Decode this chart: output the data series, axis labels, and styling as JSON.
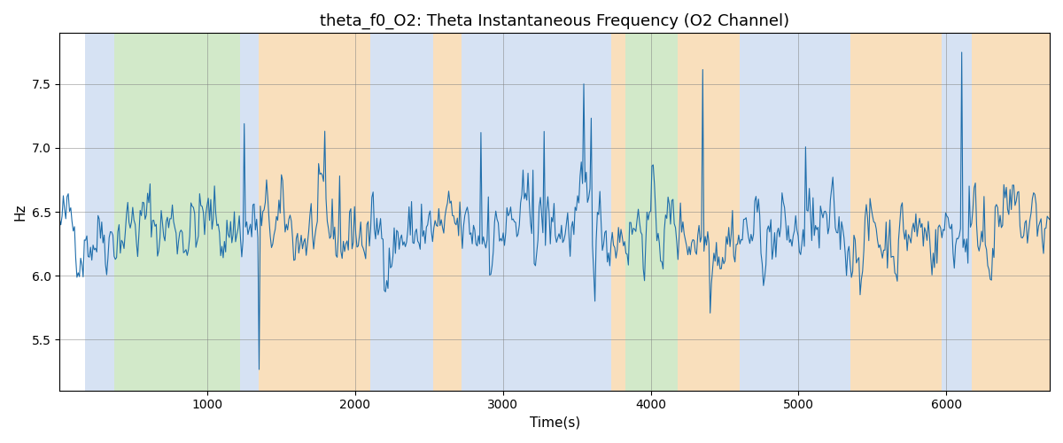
{
  "title": "theta_f0_O2: Theta Instantaneous Frequency (O2 Channel)",
  "xlabel": "Time(s)",
  "ylabel": "Hz",
  "xlim": [
    0,
    6700
  ],
  "ylim": [
    5.1,
    7.9
  ],
  "line_color": "#1f6eab",
  "line_width": 0.8,
  "grid": true,
  "bands": [
    {
      "xmin": 170,
      "xmax": 370,
      "color": "#aec6e8",
      "alpha": 0.5
    },
    {
      "xmin": 370,
      "xmax": 1220,
      "color": "#90c87a",
      "alpha": 0.4
    },
    {
      "xmin": 1220,
      "xmax": 1350,
      "color": "#aec6e8",
      "alpha": 0.5
    },
    {
      "xmin": 1350,
      "xmax": 2100,
      "color": "#f5c07a",
      "alpha": 0.5
    },
    {
      "xmin": 2100,
      "xmax": 2530,
      "color": "#aec6e8",
      "alpha": 0.5
    },
    {
      "xmin": 2530,
      "xmax": 2720,
      "color": "#f5c07a",
      "alpha": 0.5
    },
    {
      "xmin": 2720,
      "xmax": 3730,
      "color": "#aec6e8",
      "alpha": 0.5
    },
    {
      "xmin": 3730,
      "xmax": 3830,
      "color": "#f5c07a",
      "alpha": 0.5
    },
    {
      "xmin": 3830,
      "xmax": 4180,
      "color": "#90c87a",
      "alpha": 0.4
    },
    {
      "xmin": 4180,
      "xmax": 4600,
      "color": "#f5c07a",
      "alpha": 0.5
    },
    {
      "xmin": 4600,
      "xmax": 5350,
      "color": "#aec6e8",
      "alpha": 0.5
    },
    {
      "xmin": 5350,
      "xmax": 5970,
      "color": "#f5c07a",
      "alpha": 0.5
    },
    {
      "xmin": 5970,
      "xmax": 6170,
      "color": "#aec6e8",
      "alpha": 0.5
    },
    {
      "xmin": 6170,
      "xmax": 6700,
      "color": "#f5c07a",
      "alpha": 0.5
    }
  ],
  "seed": 42,
  "n_points": 800,
  "base_freq": 6.35,
  "ar_coef": 0.72,
  "noise_scale": 0.18
}
